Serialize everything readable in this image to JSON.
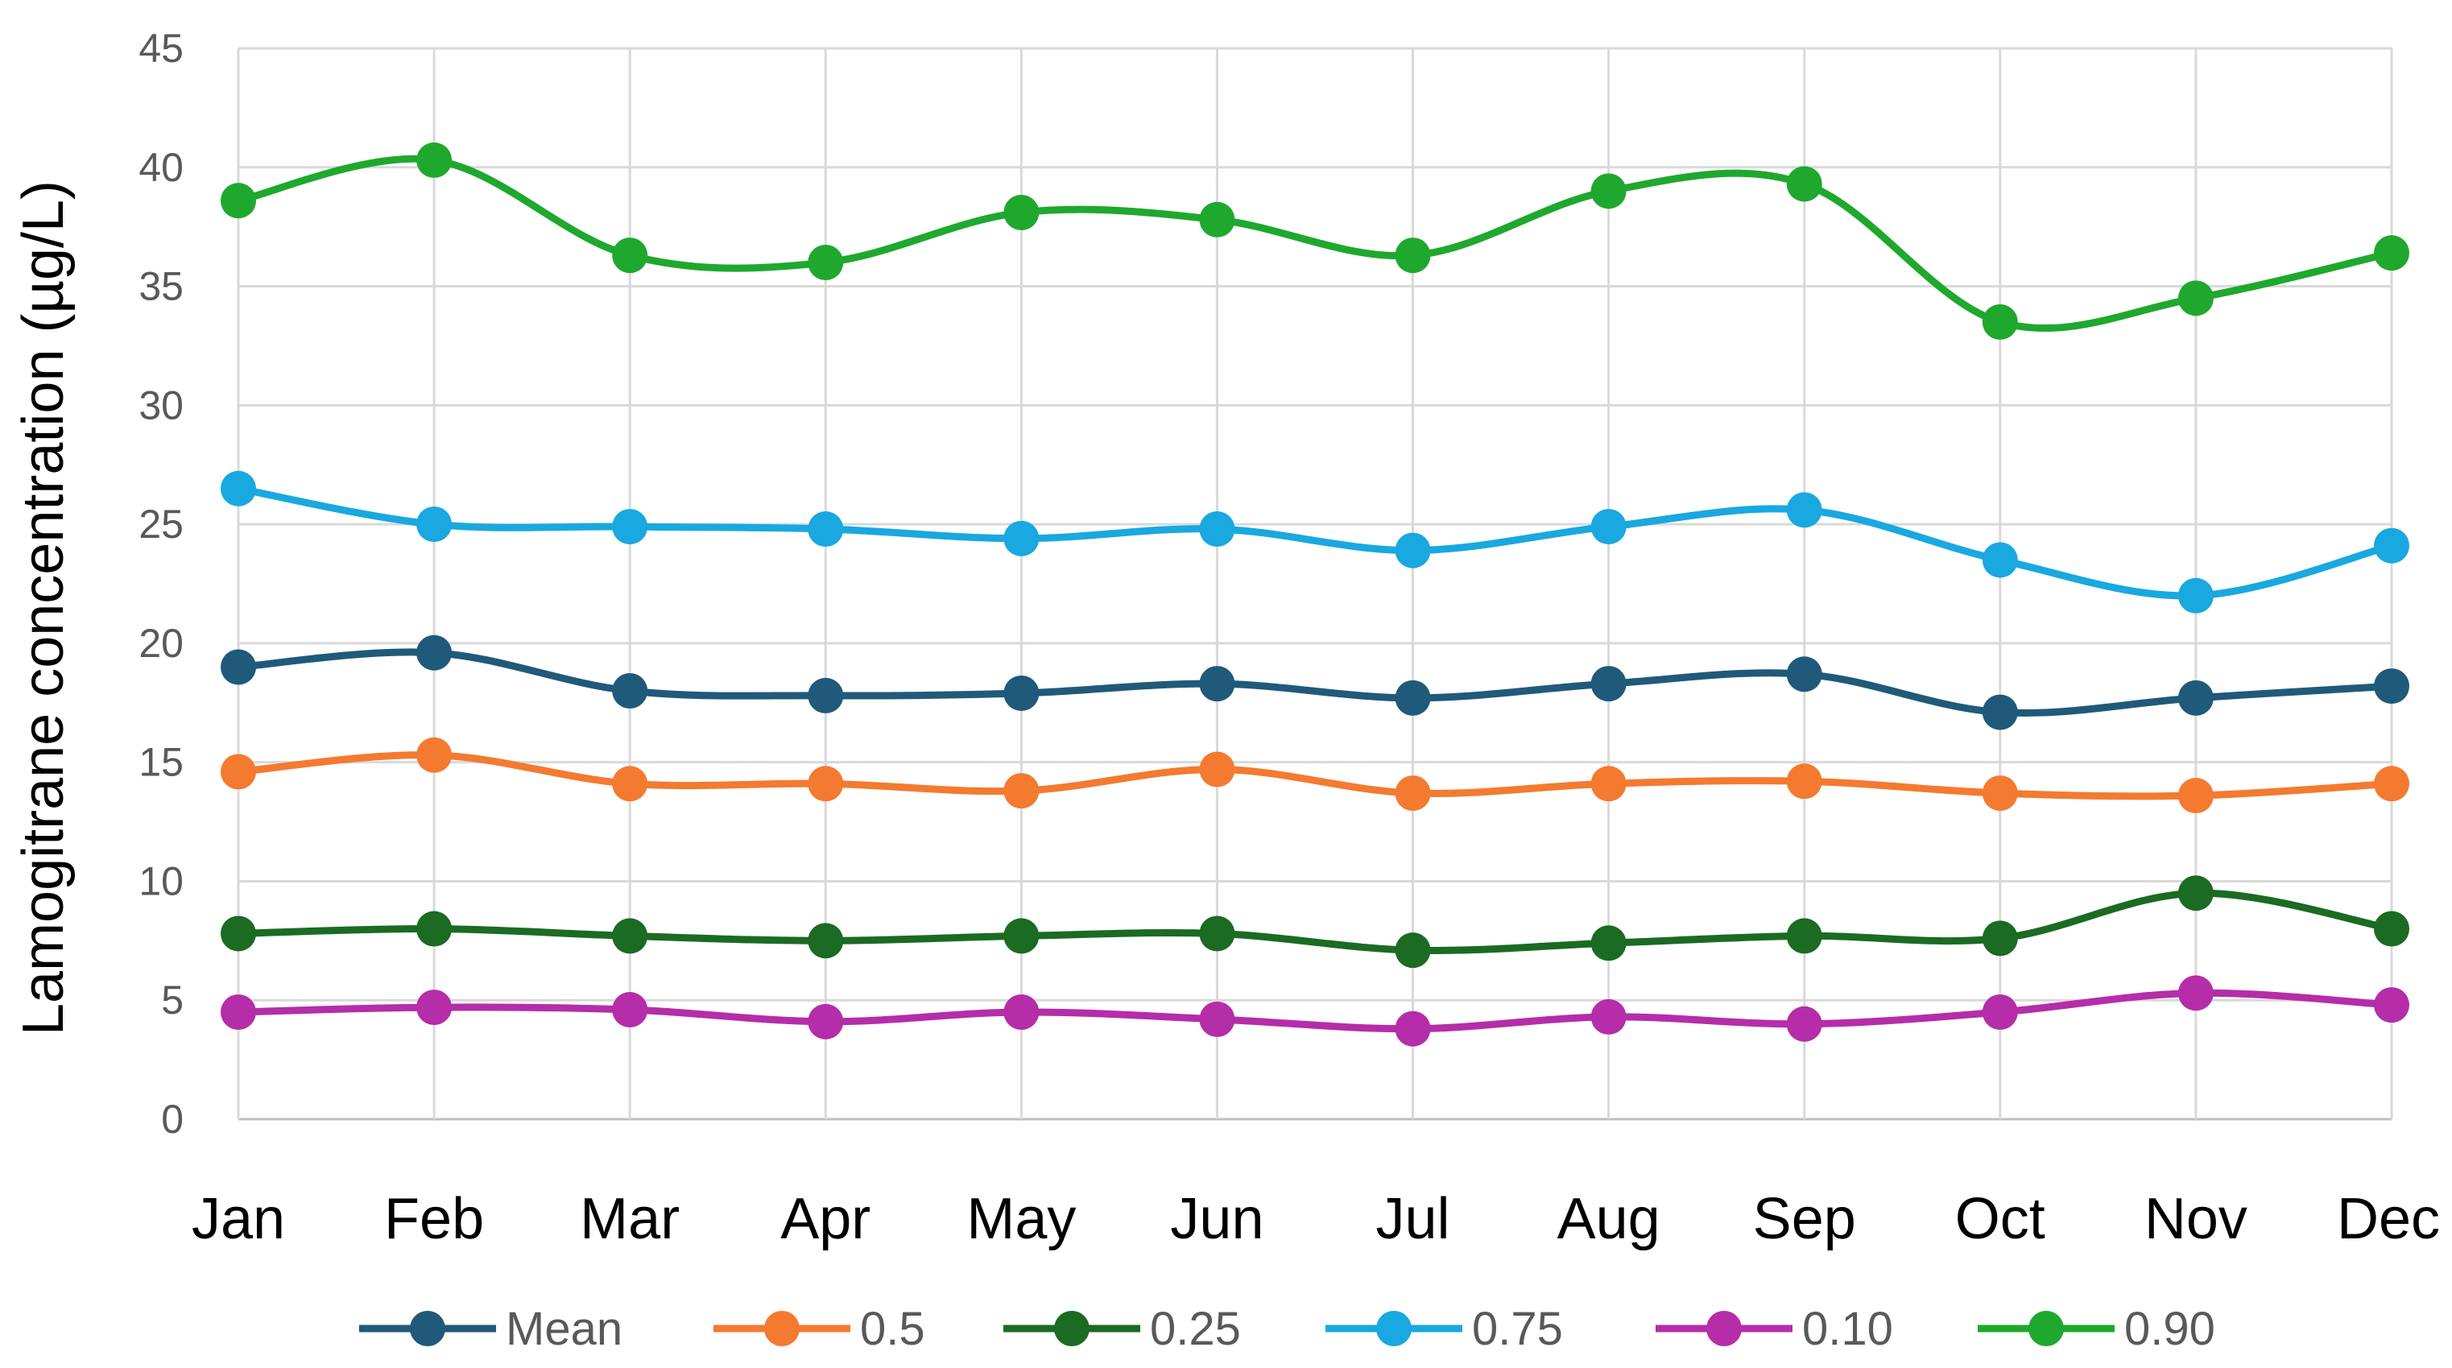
{
  "chart_data": {
    "type": "line",
    "title": "",
    "xlabel": "",
    "ylabel": "Lamogitrane concentration (µg/L)",
    "categories": [
      "Jan",
      "Feb",
      "Mar",
      "Apr",
      "May",
      "Jun",
      "Jul",
      "Aug",
      "Sep",
      "Oct",
      "Nov",
      "Dec"
    ],
    "ylim": [
      0,
      45
    ],
    "yticks": [
      0,
      5,
      10,
      15,
      20,
      25,
      30,
      35,
      40,
      45
    ],
    "grid": "on",
    "legend_position": "bottom",
    "smooth": true,
    "series": [
      {
        "name": "Mean",
        "color": "#1F5A7A",
        "values": [
          19.0,
          19.6,
          18.0,
          17.8,
          17.9,
          18.3,
          17.7,
          18.3,
          18.7,
          17.1,
          17.7,
          18.2
        ]
      },
      {
        "name": "0.5",
        "color": "#F47A30",
        "values": [
          14.6,
          15.3,
          14.1,
          14.1,
          13.8,
          14.7,
          13.7,
          14.1,
          14.2,
          13.7,
          13.6,
          14.1
        ]
      },
      {
        "name": "0.25",
        "color": "#1B6B22",
        "values": [
          7.8,
          8.0,
          7.7,
          7.5,
          7.7,
          7.8,
          7.1,
          7.4,
          7.7,
          7.6,
          9.5,
          8.0
        ]
      },
      {
        "name": "0.75",
        "color": "#19A8E0",
        "values": [
          26.5,
          25.0,
          24.9,
          24.8,
          24.4,
          24.8,
          23.9,
          24.9,
          25.6,
          23.5,
          22.0,
          24.1
        ]
      },
      {
        "name": "0.10",
        "color": "#B52DA8",
        "values": [
          4.5,
          4.7,
          4.6,
          4.1,
          4.5,
          4.2,
          3.8,
          4.3,
          4.0,
          4.5,
          5.3,
          4.8
        ]
      },
      {
        "name": "0.90",
        "color": "#1FA82E",
        "values": [
          38.6,
          40.3,
          36.3,
          36.0,
          38.1,
          37.8,
          36.3,
          39.0,
          39.3,
          33.5,
          34.5,
          36.4
        ]
      }
    ]
  }
}
